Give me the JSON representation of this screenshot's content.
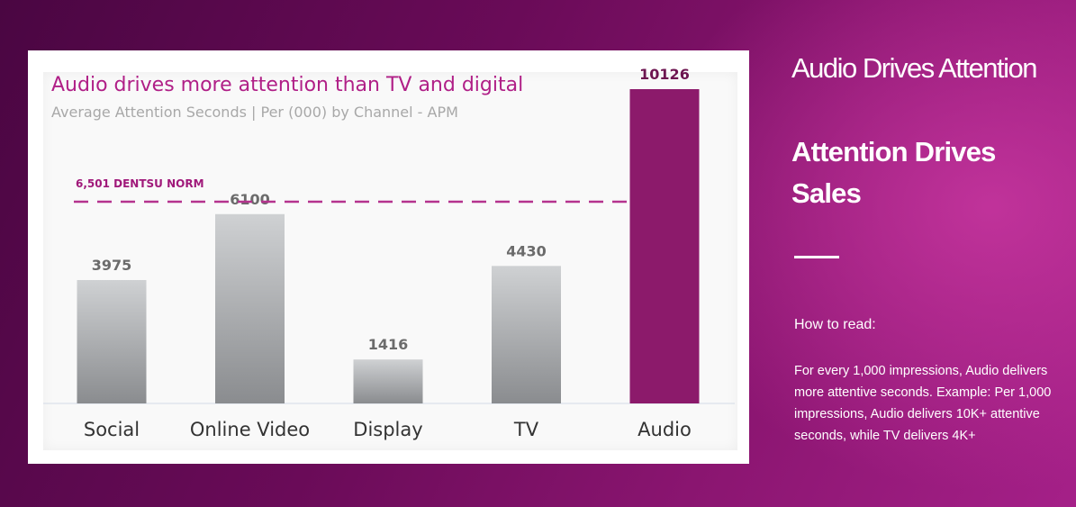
{
  "chart_data": {
    "type": "bar",
    "title": "Audio drives more attention than TV and digital",
    "subtitle": "Average Attention Seconds | Per (000) by Channel - APM",
    "categories": [
      "Social",
      "Online Video",
      "Display",
      "TV",
      "Audio"
    ],
    "values": [
      3975,
      6100,
      1416,
      4430,
      10126
    ],
    "highlight": "Audio",
    "reference_line": {
      "value": 6501,
      "label": "6,501 DENTSU NORM",
      "style": "dashed"
    },
    "xlabel": "",
    "ylabel": "",
    "ylim": [
      0,
      10126
    ],
    "grid": false,
    "legend": "none"
  },
  "colors": {
    "bar_default": "#c0c2c5",
    "bar_highlight": "#8c1a6b",
    "value_default": "#6b6b6b",
    "value_highlight": "#6d1550",
    "reference_line": "#b5338e",
    "title": "#b01f87"
  },
  "sidebar": {
    "heading": "Audio Drives Attention",
    "subheading": "Attention Drives Sales",
    "how_to_read_label": "How to read:",
    "how_to_read_body": "For every 1,000 impressions, Audio delivers more attentive seconds. Example: Per 1,000 impressions, Audio delivers 10K+ attentive seconds, while TV delivers 4K+"
  }
}
